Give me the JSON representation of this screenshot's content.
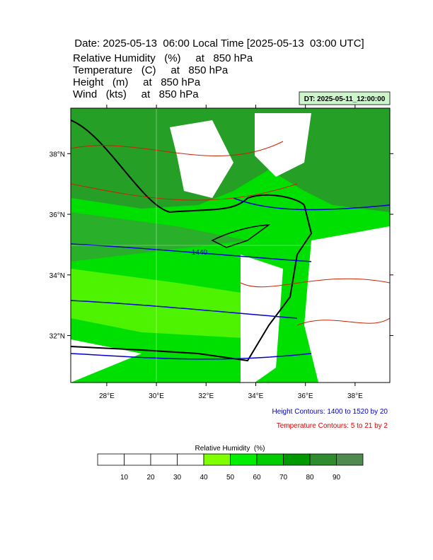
{
  "header": {
    "title": "Date: 2025-05-13  06:00 Local Time [2025-05-13  03:00 UTC]",
    "fields": [
      "Relative Humidity   (%)     at   850 hPa",
      "Temperature   (C)     at   850 hPa",
      "Height   (m)     at   850 hPa",
      "Wind   (kts)     at   850 hPa"
    ],
    "init_time": "DT: 2025-05-11_12:00:00"
  },
  "map": {
    "latlim": [
      30.45,
      39.5
    ],
    "lonlim": [
      26.55,
      39.4
    ],
    "latticks": [
      {
        "value": 32,
        "label": "32°N"
      },
      {
        "value": 34,
        "label": "34°N"
      },
      {
        "value": 36,
        "label": "36°N"
      },
      {
        "value": 38,
        "label": "38°N"
      }
    ],
    "lonticks": [
      {
        "value": 28,
        "label": "28°E"
      },
      {
        "value": 30,
        "label": "30°E"
      },
      {
        "value": 32,
        "label": "32°E"
      },
      {
        "value": 34,
        "label": "34°E"
      },
      {
        "value": 36,
        "label": "36°E"
      },
      {
        "value": 38,
        "label": "38°E"
      }
    ],
    "contour_label": "1440",
    "height_note": "Height Contours: 1400 to 1520 by 20",
    "temperature_note": "Temperature Contours: 5 to 21 by 2"
  },
  "colorbar": {
    "title": "Relative Humidity  (%)",
    "levels": [
      10,
      20,
      30,
      40,
      50,
      60,
      70,
      80,
      90
    ],
    "colors": [
      "#ffffff",
      "#ffffff",
      "#ffffff",
      "#ffffff",
      "#80ff00",
      "#00ee00",
      "#00cc00",
      "#009900",
      "#2e8b2e",
      "#4f8a4f"
    ]
  }
}
